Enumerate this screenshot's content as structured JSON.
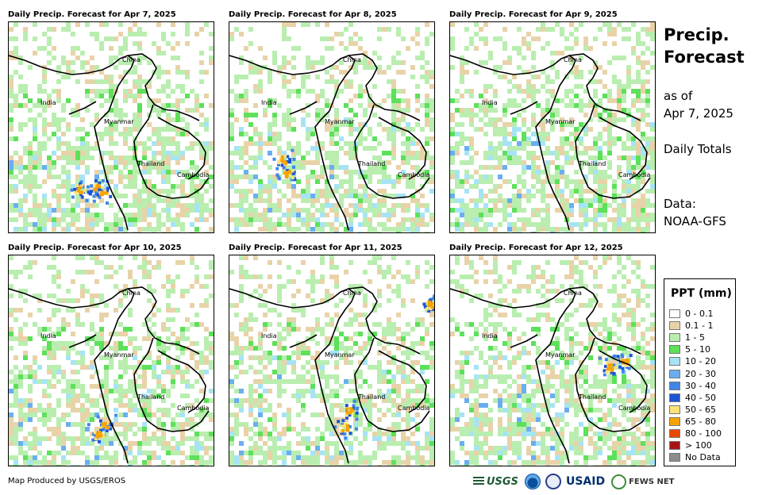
{
  "panels": [
    {
      "title": "Daily Precip. Forecast for Apr 7, 2025",
      "seed": 7,
      "heavy": [
        [
          88,
          210
        ],
        [
          108,
          206
        ],
        [
          118,
          212
        ]
      ]
    },
    {
      "title": "Daily Precip. Forecast for Apr 8, 2025",
      "seed": 8,
      "heavy": [
        [
          66,
          172
        ],
        [
          72,
          190
        ]
      ]
    },
    {
      "title": "Daily Precip. Forecast for Apr 9, 2025",
      "seed": 9,
      "heavy": []
    },
    {
      "title": "Daily Precip. Forecast for Apr 10, 2025",
      "seed": 10,
      "heavy": [
        [
          120,
          212
        ],
        [
          112,
          224
        ]
      ]
    },
    {
      "title": "Daily Precip. Forecast for Apr 11, 2025",
      "seed": 11,
      "heavy": [
        [
          144,
          215
        ],
        [
          150,
          195
        ],
        [
          252,
          60
        ]
      ]
    },
    {
      "title": "Daily Precip. Forecast for Apr 12, 2025",
      "seed": 12,
      "heavy": [
        [
          200,
          140
        ],
        [
          218,
          132
        ]
      ]
    }
  ],
  "map_labels": {
    "china": "China",
    "india": "India",
    "myanmar": "Myanmar",
    "thailand": "Thailand",
    "cambodia": "Cambodia"
  },
  "sidebar": {
    "title_line1": "Precip.",
    "title_line2": "Forecast",
    "asof_line1": "as of",
    "asof_line2": "Apr 7, 2025",
    "totals": "Daily Totals",
    "data_label": "Data:",
    "data_source": "NOAA-GFS"
  },
  "legend": {
    "title": "PPT (mm)",
    "items": [
      {
        "label": "0 - 0.1",
        "color": "#ffffff"
      },
      {
        "label": "0.1 - 1",
        "color": "#e8d3a9"
      },
      {
        "label": "1 - 5",
        "color": "#b9eeb0"
      },
      {
        "label": "5 - 10",
        "color": "#5de05a"
      },
      {
        "label": "10 - 20",
        "color": "#a6e4f5"
      },
      {
        "label": "20 - 30",
        "color": "#6aaef0"
      },
      {
        "label": "30 - 40",
        "color": "#3f86e6"
      },
      {
        "label": "40 - 50",
        "color": "#1b55d6"
      },
      {
        "label": "50 - 65",
        "color": "#fde27a"
      },
      {
        "label": "65 - 80",
        "color": "#f6a300"
      },
      {
        "label": "80 - 100",
        "color": "#e84a00"
      },
      {
        "label": "> 100",
        "color": "#a81414"
      },
      {
        "label": "No Data",
        "color": "#8c8c8c"
      }
    ]
  },
  "credit": "Map Produced by USGS/EROS",
  "logos": {
    "usgs": "USGS",
    "usaid": "USAID",
    "fews": "FEWS NET"
  }
}
